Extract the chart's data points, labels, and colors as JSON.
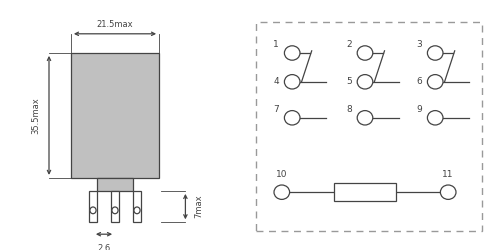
{
  "bg_color": "#ffffff",
  "body_color": "#c0c0c0",
  "dim_width_text": "21.5max",
  "dim_height_text": "35.5max",
  "dim_pin_text": "7max",
  "dim_spacing_text": "2.6",
  "line_color": "#444444",
  "dashed_color": "#999999"
}
